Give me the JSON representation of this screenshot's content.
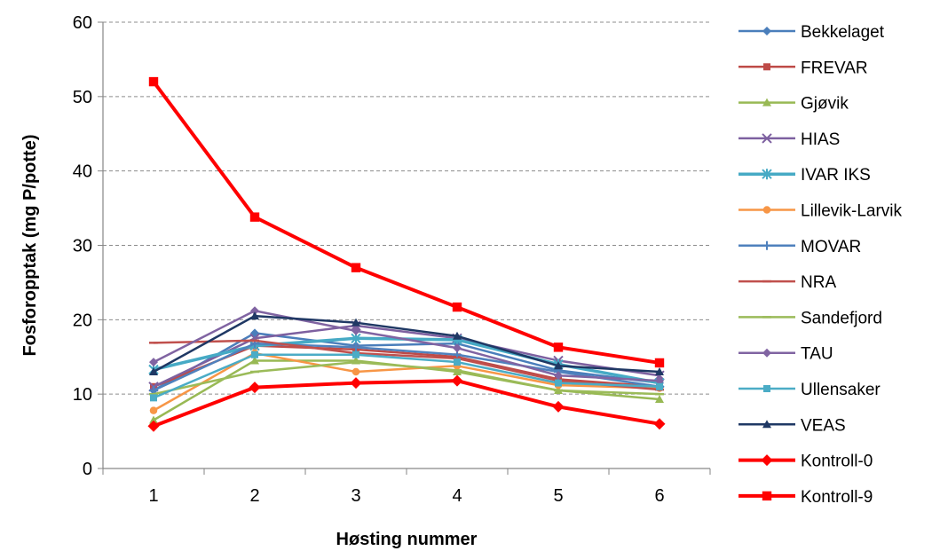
{
  "chart_data": {
    "type": "line",
    "xlabel": "Høsting nummer",
    "ylabel": "Fosforopptak (mg P/potte)",
    "x": [
      1,
      2,
      3,
      4,
      5,
      6
    ],
    "xlim": [
      0.5,
      6.5
    ],
    "ylim": [
      0,
      60
    ],
    "yticks": [
      0,
      10,
      20,
      30,
      40,
      50,
      60
    ],
    "grid": "horizontal dashed",
    "legend_position": "right",
    "series": [
      {
        "name": "Bekkelaget",
        "color": "#4a7ebb",
        "marker": "diamond",
        "values": [
          10.5,
          18.2,
          16.5,
          16.8,
          13.2,
          11.5
        ]
      },
      {
        "name": "FREVAR",
        "color": "#be4b48",
        "marker": "square",
        "values": [
          11.0,
          16.5,
          16.0,
          15.0,
          12.0,
          11.0
        ]
      },
      {
        "name": "Gjøvik",
        "color": "#98b954",
        "marker": "triangle",
        "values": [
          6.5,
          14.5,
          14.5,
          13.0,
          10.5,
          9.3
        ]
      },
      {
        "name": "HIAS",
        "color": "#7d60a0",
        "marker": "x",
        "values": [
          11.0,
          17.5,
          19.2,
          17.5,
          14.5,
          12.5
        ]
      },
      {
        "name": "IVAR IKS",
        "color": "#46aac5",
        "marker": "star",
        "values": [
          13.3,
          16.5,
          17.5,
          17.3,
          14.0,
          11.5
        ]
      },
      {
        "name": "Lillevik-Larvik",
        "color": "#f79646",
        "marker": "circle",
        "values": [
          7.8,
          15.5,
          13.0,
          13.8,
          11.2,
          10.8
        ]
      },
      {
        "name": "MOVAR",
        "color": "#4f81bd",
        "marker": "plus",
        "values": [
          10.5,
          16.8,
          16.3,
          15.3,
          13.0,
          11.0
        ]
      },
      {
        "name": "NRA",
        "color": "#c0504d",
        "marker": "dash",
        "values": [
          16.9,
          17.2,
          15.5,
          14.8,
          11.8,
          10.6
        ]
      },
      {
        "name": "Sandefjord",
        "color": "#9bbb59",
        "marker": "dash",
        "values": [
          10.0,
          13.0,
          14.3,
          13.2,
          10.5,
          10.0
        ]
      },
      {
        "name": "TAU",
        "color": "#8064a2",
        "marker": "diamond",
        "values": [
          14.3,
          21.2,
          18.5,
          16.2,
          12.5,
          11.8
        ]
      },
      {
        "name": "Ullensaker",
        "color": "#4bacc6",
        "marker": "square",
        "values": [
          9.5,
          15.3,
          15.3,
          14.3,
          11.5,
          11.0
        ]
      },
      {
        "name": "VEAS",
        "color": "#1f3864",
        "marker": "triangle",
        "values": [
          13.0,
          20.5,
          19.6,
          17.8,
          13.8,
          13.0
        ]
      },
      {
        "name": "Kontroll-0",
        "color": "#ff0000",
        "marker": "diamond",
        "values": [
          5.7,
          10.9,
          11.5,
          11.8,
          8.3,
          6.0
        ]
      },
      {
        "name": "Kontroll-9",
        "color": "#ff0000",
        "marker": "square",
        "values": [
          52.0,
          33.8,
          27.0,
          21.7,
          16.3,
          14.2
        ]
      }
    ]
  }
}
